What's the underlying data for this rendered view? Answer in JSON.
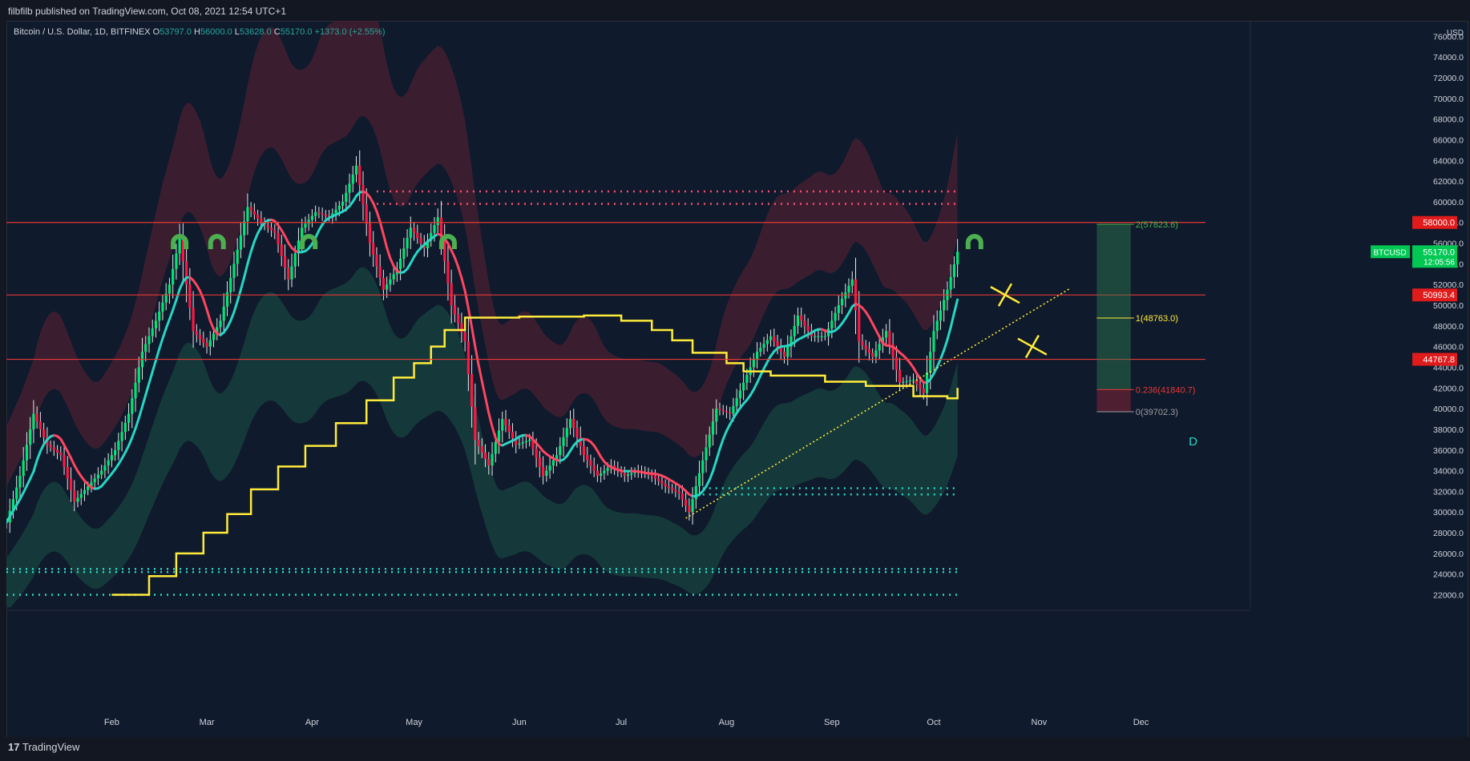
{
  "header": {
    "publisher": "filbfilb published on TradingView.com, Oct 08, 2021 12:54 UTC+1"
  },
  "legend": {
    "symbol": "Bitcoin / U.S. Dollar, 1D, BITFINEX",
    "open_label": "O",
    "open": "53797.0",
    "high_label": "H",
    "high": "56000.0",
    "low_label": "L",
    "low": "53628.0",
    "close_label": "C",
    "close": "55170.0",
    "change": "+1373.0 (+2.55%)"
  },
  "footer": {
    "brand": "TradingView"
  },
  "colors": {
    "background": "#0f1a2c",
    "up_candle": "#00e676",
    "down_candle": "#ff1744",
    "hline": "#e53935",
    "step_line": "#ffeb3b",
    "ema_up": "#26d7c4",
    "ema_down": "#ff4560",
    "dots_red": "#ff4d6d",
    "dots_teal": "#26d7c4",
    "target_green": "#2e7d4f",
    "target_red": "#8b2336"
  },
  "chart_data": {
    "type": "candlestick",
    "currency": "USD",
    "y_ticks": [
      "76000.0",
      "74000.0",
      "72000.0",
      "70000.0",
      "68000.0",
      "66000.0",
      "64000.0",
      "62000.0",
      "60000.0",
      "58000.0",
      "56000.0",
      "54000.0",
      "52000.0",
      "50000.0",
      "48000.0",
      "46000.0",
      "44000.0",
      "42000.0",
      "40000.0",
      "38000.0",
      "36000.0",
      "34000.0",
      "32000.0",
      "30000.0",
      "28000.0",
      "26000.0",
      "24000.0",
      "22000.0"
    ],
    "x_ticks": [
      {
        "label": "Feb",
        "date": "2021-02-01"
      },
      {
        "label": "Mar",
        "date": "2021-03-01"
      },
      {
        "label": "Apr",
        "date": "2021-04-01"
      },
      {
        "label": "May",
        "date": "2021-05-01"
      },
      {
        "label": "Jun",
        "date": "2021-06-01"
      },
      {
        "label": "Jul",
        "date": "2021-07-01"
      },
      {
        "label": "Aug",
        "date": "2021-08-01"
      },
      {
        "label": "Sep",
        "date": "2021-09-01"
      },
      {
        "label": "Oct",
        "date": "2021-10-01"
      },
      {
        "label": "Nov",
        "date": "2021-11-01"
      },
      {
        "label": "Dec",
        "date": "2021-12-01"
      }
    ],
    "price_series": [
      [
        "2021-01-01",
        29000
      ],
      [
        "2021-01-05",
        33500
      ],
      [
        "2021-01-09",
        39500
      ],
      [
        "2021-01-13",
        36500
      ],
      [
        "2021-01-17",
        35500
      ],
      [
        "2021-01-21",
        31000
      ],
      [
        "2021-01-25",
        32500
      ],
      [
        "2021-01-29",
        34000
      ],
      [
        "2021-02-02",
        36000
      ],
      [
        "2021-02-06",
        39500
      ],
      [
        "2021-02-10",
        45500
      ],
      [
        "2021-02-14",
        48500
      ],
      [
        "2021-02-18",
        52000
      ],
      [
        "2021-02-21",
        56500
      ],
      [
        "2021-02-25",
        47500
      ],
      [
        "2021-03-01",
        46000
      ],
      [
        "2021-03-05",
        48500
      ],
      [
        "2021-03-09",
        54000
      ],
      [
        "2021-03-13",
        59500
      ],
      [
        "2021-03-17",
        58000
      ],
      [
        "2021-03-21",
        57000
      ],
      [
        "2021-03-25",
        52500
      ],
      [
        "2021-03-29",
        57500
      ],
      [
        "2021-04-02",
        59000
      ],
      [
        "2021-04-06",
        58500
      ],
      [
        "2021-04-10",
        60000
      ],
      [
        "2021-04-14",
        63500
      ],
      [
        "2021-04-18",
        56000
      ],
      [
        "2021-04-22",
        51500
      ],
      [
        "2021-04-26",
        53500
      ],
      [
        "2021-04-30",
        57500
      ],
      [
        "2021-05-04",
        55500
      ],
      [
        "2021-05-08",
        58500
      ],
      [
        "2021-05-12",
        50000
      ],
      [
        "2021-05-16",
        46500
      ],
      [
        "2021-05-19",
        37000
      ],
      [
        "2021-05-23",
        34500
      ],
      [
        "2021-05-27",
        39000
      ],
      [
        "2021-05-31",
        36500
      ],
      [
        "2021-06-04",
        37000
      ],
      [
        "2021-06-08",
        33500
      ],
      [
        "2021-06-12",
        35500
      ],
      [
        "2021-06-16",
        39000
      ],
      [
        "2021-06-20",
        35500
      ],
      [
        "2021-06-24",
        33500
      ],
      [
        "2021-06-28",
        34500
      ],
      [
        "2021-07-02",
        33500
      ],
      [
        "2021-07-06",
        34000
      ],
      [
        "2021-07-10",
        33500
      ],
      [
        "2021-07-14",
        32500
      ],
      [
        "2021-07-18",
        31800
      ],
      [
        "2021-07-21",
        30000
      ],
      [
        "2021-07-25",
        35000
      ],
      [
        "2021-07-29",
        40000
      ],
      [
        "2021-08-02",
        39500
      ],
      [
        "2021-08-06",
        42500
      ],
      [
        "2021-08-10",
        45500
      ],
      [
        "2021-08-14",
        47000
      ],
      [
        "2021-08-18",
        45000
      ],
      [
        "2021-08-22",
        49000
      ],
      [
        "2021-08-26",
        47000
      ],
      [
        "2021-08-30",
        47000
      ],
      [
        "2021-09-03",
        50000
      ],
      [
        "2021-09-07",
        52500
      ],
      [
        "2021-09-09",
        46500
      ],
      [
        "2021-09-13",
        45000
      ],
      [
        "2021-09-17",
        47500
      ],
      [
        "2021-09-21",
        42500
      ],
      [
        "2021-09-25",
        42800
      ],
      [
        "2021-09-28",
        41500
      ],
      [
        "2021-10-01",
        47500
      ],
      [
        "2021-10-05",
        51500
      ],
      [
        "2021-10-08",
        55170
      ]
    ],
    "horizontal_levels": [
      {
        "value": 58000.0,
        "label": "58000.0"
      },
      {
        "value": 50993.4,
        "label": "50993.4"
      },
      {
        "value": 44767.8,
        "label": "44767.8"
      }
    ],
    "last_price": {
      "symbol": "BTCUSD",
      "value": "55170.0",
      "countdown": "12:05:56"
    },
    "fib_levels": [
      {
        "ratio": "2",
        "value": 57823.6,
        "label": "2(57823.6)"
      },
      {
        "ratio": "1",
        "value": 48763.0,
        "label": "1(48763.0)"
      },
      {
        "ratio": "0.236",
        "value": 41840.7,
        "label": "0.236(41840.7)"
      },
      {
        "ratio": "0",
        "value": 39702.3,
        "label": "0(39702.3)"
      }
    ],
    "dotted_resistance": [
      61000,
      59800
    ],
    "dotted_support_mid": [
      32300,
      31700
    ],
    "dotted_support_low": [
      24500,
      24200,
      22000
    ],
    "trendline": {
      "start": [
        "2021-07-20",
        29400
      ],
      "end": [
        "2021-11-10",
        51600
      ]
    },
    "step_line": [
      [
        "2021-02-01",
        22000
      ],
      [
        "2021-02-12",
        23800
      ],
      [
        "2021-02-20",
        26000
      ],
      [
        "2021-02-28",
        28000
      ],
      [
        "2021-03-07",
        29800
      ],
      [
        "2021-03-14",
        32200
      ],
      [
        "2021-03-22",
        34400
      ],
      [
        "2021-03-30",
        36400
      ],
      [
        "2021-04-08",
        38600
      ],
      [
        "2021-04-17",
        40800
      ],
      [
        "2021-04-25",
        43000
      ],
      [
        "2021-05-01",
        44400
      ],
      [
        "2021-05-06",
        46000
      ],
      [
        "2021-05-10",
        47600
      ],
      [
        "2021-05-16",
        48800
      ],
      [
        "2021-06-01",
        48900
      ],
      [
        "2021-06-20",
        49000
      ],
      [
        "2021-07-01",
        48500
      ],
      [
        "2021-07-10",
        47600
      ],
      [
        "2021-07-16",
        46600
      ],
      [
        "2021-07-22",
        45400
      ],
      [
        "2021-08-01",
        44400
      ],
      [
        "2021-08-06",
        43600
      ],
      [
        "2021-08-14",
        43200
      ],
      [
        "2021-08-30",
        42600
      ],
      [
        "2021-09-11",
        42200
      ],
      [
        "2021-09-25",
        41200
      ],
      [
        "2021-10-05",
        41000
      ],
      [
        "2021-10-08",
        42000
      ]
    ],
    "arch_markers": [
      "2021-02-21",
      "2021-03-04",
      "2021-03-31",
      "2021-05-11",
      "2021-10-13"
    ],
    "x_markers": [
      [
        "2021-10-22",
        51000
      ],
      [
        "2021-10-30",
        46000
      ]
    ],
    "period_label": "D",
    "grid": false,
    "legend_position": "top-left"
  }
}
